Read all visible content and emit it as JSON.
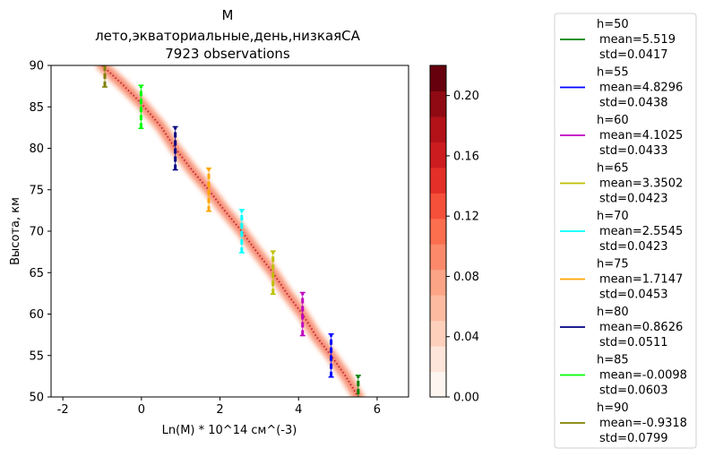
{
  "chart_data": {
    "type": "scatter",
    "title_lines": [
      "M",
      "лето,экваториальные,день,низкаяCA",
      "7923 observations"
    ],
    "xlabel": "Ln(M) * 10^14 см^(-3)",
    "ylabel": "Высота, км",
    "xlim": [
      -2.3,
      6.8
    ],
    "ylim": [
      50,
      90
    ],
    "xticks": [
      -2,
      0,
      2,
      4,
      6
    ],
    "yticks": [
      50,
      55,
      60,
      65,
      70,
      75,
      80,
      85,
      90
    ],
    "grid": false,
    "legend_position": "right (outside plot)",
    "colorbar": {
      "vmin": 0.0,
      "vmax": 0.22,
      "ticks": [
        0.0,
        0.04,
        0.08,
        0.12,
        0.16,
        0.2
      ],
      "tick_labels": [
        "0.00",
        "0.04",
        "0.08",
        "0.12",
        "0.16",
        "0.20"
      ],
      "colors": [
        "#fff5f0",
        "#fee5d9",
        "#fdd0bc",
        "#fcbba1",
        "#fca486",
        "#fc8a6a",
        "#fb6e4e",
        "#f4503a",
        "#e32f27",
        "#cc1c1f",
        "#b21218",
        "#8f0a12",
        "#67000d"
      ]
    },
    "density_band": [
      {
        "x": -1.0,
        "y": 90
      },
      {
        "x": -0.5,
        "y": 87.8
      },
      {
        "x": 0.0,
        "y": 85.4
      },
      {
        "x": 0.5,
        "y": 82.6
      },
      {
        "x": 0.86,
        "y": 80
      },
      {
        "x": 1.3,
        "y": 77.3
      },
      {
        "x": 1.71,
        "y": 75
      },
      {
        "x": 2.1,
        "y": 72.6
      },
      {
        "x": 2.55,
        "y": 70
      },
      {
        "x": 2.95,
        "y": 67.4
      },
      {
        "x": 3.35,
        "y": 65
      },
      {
        "x": 3.7,
        "y": 62.5
      },
      {
        "x": 4.1,
        "y": 60
      },
      {
        "x": 4.45,
        "y": 57.3
      },
      {
        "x": 4.83,
        "y": 55
      },
      {
        "x": 5.2,
        "y": 52.5
      },
      {
        "x": 5.52,
        "y": 50
      }
    ],
    "series": [
      {
        "name": "h=50",
        "mean_label": "mean=5.519",
        "std_label": "std=0.0417",
        "h": 50,
        "mean": 5.519,
        "std": 0.0417,
        "color": "#008000"
      },
      {
        "name": "h=55",
        "mean_label": "mean=4.8296",
        "std_label": "std=0.0438",
        "h": 55,
        "mean": 4.8296,
        "std": 0.0438,
        "color": "#0000ff"
      },
      {
        "name": "h=60",
        "mean_label": "mean=4.1025",
        "std_label": "std=0.0433",
        "h": 60,
        "mean": 4.1025,
        "std": 0.0433,
        "color": "#bf00bf"
      },
      {
        "name": "h=65",
        "mean_label": "mean=3.3502",
        "std_label": "std=0.0423",
        "h": 65,
        "mean": 3.3502,
        "std": 0.0423,
        "color": "#bfbf00"
      },
      {
        "name": "h=70",
        "mean_label": "mean=2.5545",
        "std_label": "std=0.0423",
        "h": 70,
        "mean": 2.5545,
        "std": 0.0423,
        "color": "#00ffff"
      },
      {
        "name": "h=75",
        "mean_label": "mean=1.7147",
        "std_label": "std=0.0453",
        "h": 75,
        "mean": 1.7147,
        "std": 0.0453,
        "color": "#ffa500"
      },
      {
        "name": "h=80",
        "mean_label": "mean=0.8626",
        "std_label": "std=0.0511",
        "h": 80,
        "mean": 0.8626,
        "std": 0.0511,
        "color": "#000080"
      },
      {
        "name": "h=85",
        "mean_label": "mean=-0.0098",
        "std_label": "std=0.0603",
        "h": 85,
        "mean": -0.0098,
        "std": 0.0603,
        "color": "#00ff00"
      },
      {
        "name": "h=90",
        "mean_label": "mean=-0.9318",
        "std_label": "std=0.0799",
        "h": 90,
        "mean": -0.9318,
        "std": 0.0799,
        "color": "#808000"
      }
    ]
  }
}
